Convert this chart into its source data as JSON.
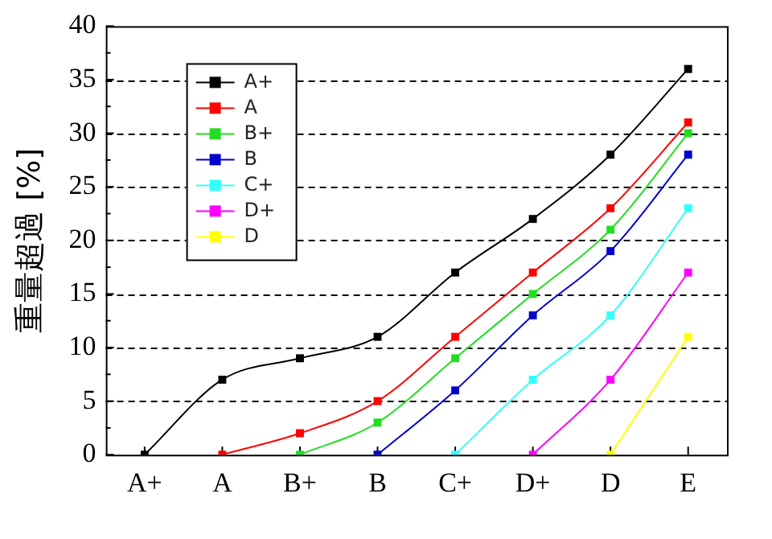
{
  "chart_data": {
    "type": "line",
    "ylabel": "重量超過 [%]",
    "categories": [
      "A+",
      "A",
      "B+",
      "B",
      "C+",
      "D+",
      "D",
      "E"
    ],
    "series": [
      {
        "name": "A+",
        "color": "#000000",
        "values": [
          0,
          7,
          9,
          11,
          17,
          22,
          28,
          36
        ]
      },
      {
        "name": "A",
        "color": "#ff0000",
        "values": [
          null,
          0,
          2,
          5,
          11,
          17,
          23,
          31
        ]
      },
      {
        "name": "B+",
        "color": "#22dd22",
        "values": [
          null,
          null,
          0,
          3,
          9,
          15,
          21,
          30
        ]
      },
      {
        "name": "B",
        "color": "#0000cc",
        "values": [
          null,
          null,
          null,
          0,
          6,
          13,
          19,
          28
        ]
      },
      {
        "name": "C+",
        "color": "#33ffff",
        "values": [
          null,
          null,
          null,
          null,
          0,
          7,
          13,
          23
        ]
      },
      {
        "name": "D+",
        "color": "#ff00ff",
        "values": [
          null,
          null,
          null,
          null,
          null,
          0,
          7,
          17
        ]
      },
      {
        "name": "D",
        "color": "#ffff00",
        "values": [
          null,
          null,
          null,
          null,
          null,
          null,
          0,
          11
        ]
      }
    ],
    "ylim": [
      0,
      40
    ],
    "yticks": [
      0,
      5,
      10,
      15,
      20,
      25,
      30,
      35,
      40
    ],
    "grid": "y",
    "legend": "top left",
    "marker": "square",
    "line_style": "solid"
  }
}
